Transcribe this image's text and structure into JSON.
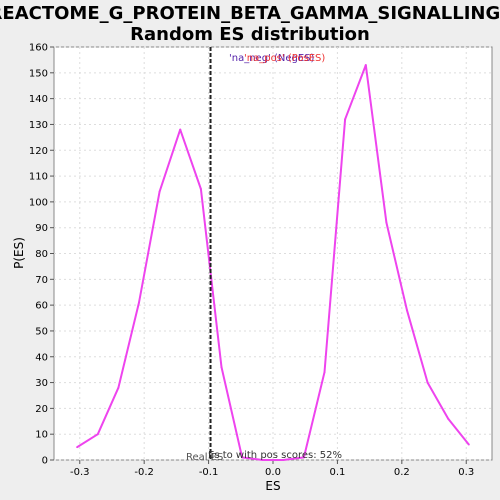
{
  "chart_data": {
    "type": "line",
    "title_line1": "REACTOME_G_PROTEIN_BETA_GAMMA_SIGNALLING:",
    "title_line2": "Random ES distribution",
    "xlabel": "ES",
    "ylabel": "P(ES)",
    "xlim": [
      -0.34,
      0.34
    ],
    "ylim": [
      0,
      160
    ],
    "x_ticks": [
      -0.3,
      -0.2,
      -0.1,
      0.0,
      0.1,
      0.2,
      0.3
    ],
    "x_tick_labels": [
      "-0.3",
      "-0.2",
      "-0.1",
      "0.0",
      "0.1",
      "0.2",
      "0.3"
    ],
    "y_ticks": [
      0,
      10,
      20,
      30,
      40,
      50,
      60,
      70,
      80,
      90,
      100,
      110,
      120,
      130,
      140,
      150,
      160
    ],
    "y_tick_labels": [
      "0",
      "10",
      "20",
      "30",
      "40",
      "50",
      "60",
      "70",
      "80",
      "90",
      "100",
      "110",
      "120",
      "130",
      "140",
      "150",
      "160"
    ],
    "grid": true,
    "series": [
      {
        "color": "#ee44ee",
        "x": [
          -0.304,
          -0.272,
          -0.24,
          -0.208,
          -0.176,
          -0.144,
          -0.112,
          -0.08,
          -0.048,
          -0.016,
          0.016,
          0.048,
          0.08,
          0.112,
          0.144,
          0.176,
          0.208,
          0.24,
          0.272,
          0.304
        ],
        "y": [
          5,
          10,
          28,
          61,
          104,
          128,
          105,
          36,
          1,
          0,
          0,
          1,
          34,
          132,
          153,
          92,
          58,
          30,
          16,
          6
        ]
      }
    ],
    "real_es_line": {
      "x": -0.097,
      "color": "#222222"
    },
    "annotations": {
      "legend_text": "'na_neg' (NegES)",
      "legend_overlay_text": "'na_pos' (PosES)",
      "legend_color": "#5522aa",
      "legend_overlay_color": "#ee3333",
      "real_es_label": "Real ES",
      "pos_scores_label": "Es to with pos scores: 52%"
    }
  }
}
